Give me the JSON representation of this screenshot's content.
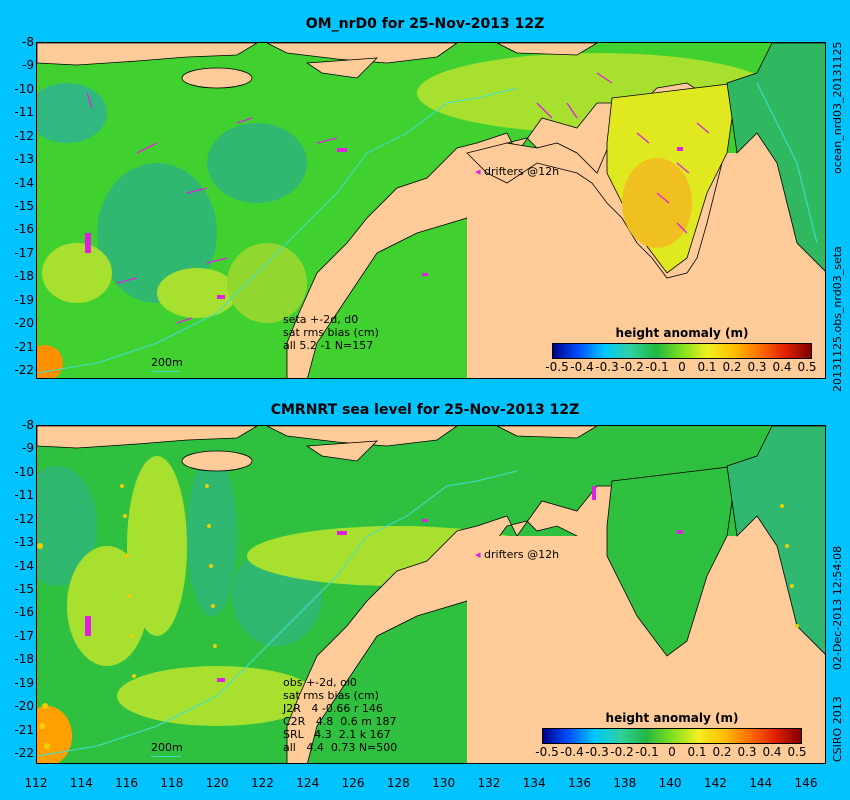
{
  "top": {
    "title": "OM_nrD0 for 25-Nov-2013 12Z",
    "side_label_1": "ocean_nrd03_20131125",
    "side_label_2": "20131125.obs_nrd03_seta",
    "drifters": "drifters @12h",
    "stats": [
      "seta +-2d, d0",
      "sat rms bias (cm)",
      "all 5.2 -1 N=157"
    ],
    "scale": "200m"
  },
  "bottom": {
    "title": "CMRNRT sea level  for 25-Nov-2013 12Z",
    "side_label_1": "02-Dec-2013 12:54:08",
    "side_label_2": "CSIRO 2013",
    "drifters": "drifters @12h",
    "stats": [
      "obs +-2d, oi0",
      "sat rms bias (cm)",
      "J2R   4 -0.66 r 146",
      "C2R   4.8  0.6 m 187",
      "SRL   4.3  2.1 k 167",
      "all   4.4  0.73 N=500"
    ],
    "scale": "200m"
  },
  "legend": {
    "title": "height anomaly (m)",
    "ticks": [
      "-0.5",
      "-0.4",
      "-0.3",
      "-0.2",
      "-0.1",
      "0",
      "0.1",
      "0.2",
      "0.3",
      "0.4",
      "0.5"
    ]
  },
  "axes": {
    "lat": [
      "-8",
      "-9",
      "-10",
      "-11",
      "-12",
      "-13",
      "-14",
      "-15",
      "-16",
      "-17",
      "-18",
      "-19",
      "-20",
      "-21",
      "-22"
    ],
    "lon": [
      "112",
      "114",
      "116",
      "118",
      "120",
      "122",
      "124",
      "126",
      "128",
      "130",
      "132",
      "134",
      "136",
      "138",
      "140",
      "142",
      "144",
      "146"
    ]
  },
  "colors": {
    "ocean_green": "#22c040",
    "land": "#ffcc99",
    "background": "#00c3ff",
    "drifter": "#e020e0"
  }
}
